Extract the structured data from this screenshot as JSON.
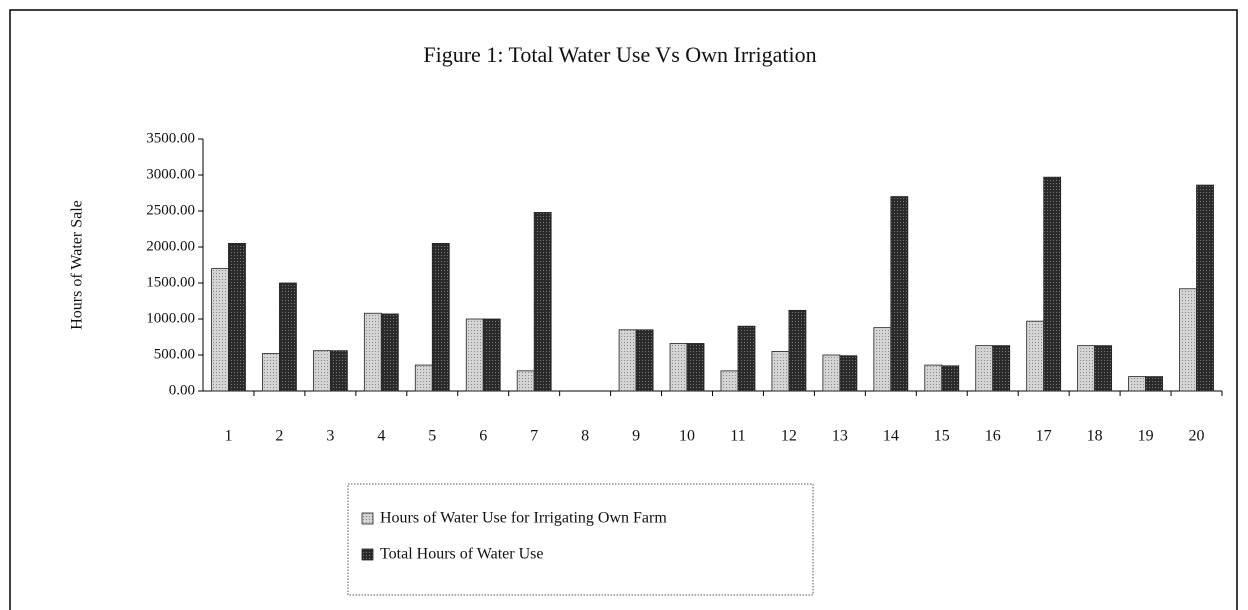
{
  "chart_data": {
    "type": "bar",
    "title": "Figure 1: Total Water Use Vs Own Irrigation",
    "y_label": "Hours of Water Sale",
    "categories": [
      "1",
      "2",
      "3",
      "4",
      "5",
      "6",
      "7",
      "8",
      "9",
      "10",
      "11",
      "12",
      "13",
      "14",
      "15",
      "16",
      "17",
      "18",
      "19",
      "20"
    ],
    "series": [
      {
        "name": "Hours of Water Use for Irrigating Own Farm",
        "color": "#c8c8c8",
        "values": [
          1700,
          520,
          560,
          1080,
          360,
          1000,
          280,
          0,
          850,
          660,
          280,
          550,
          500,
          880,
          360,
          630,
          970,
          630,
          200,
          1420
        ]
      },
      {
        "name": "Total Hours of Water Use",
        "color": "#333333",
        "values": [
          2050,
          1500,
          560,
          1070,
          2050,
          1000,
          2480,
          0,
          850,
          660,
          900,
          1120,
          490,
          2700,
          350,
          630,
          2970,
          630,
          200,
          2860
        ]
      }
    ],
    "ylim": [
      0,
      3500
    ],
    "yticks": [
      {
        "value": 0,
        "label": "0.00"
      },
      {
        "value": 500,
        "label": "500.00"
      },
      {
        "value": 1000,
        "label": "1000.00"
      },
      {
        "value": 1500,
        "label": "1500.00"
      },
      {
        "value": 2000,
        "label": "2000.00"
      },
      {
        "value": 2500,
        "label": "2500.00"
      },
      {
        "value": 3000,
        "label": "3000.00"
      },
      {
        "value": 3500,
        "label": "3500.00"
      }
    ]
  }
}
